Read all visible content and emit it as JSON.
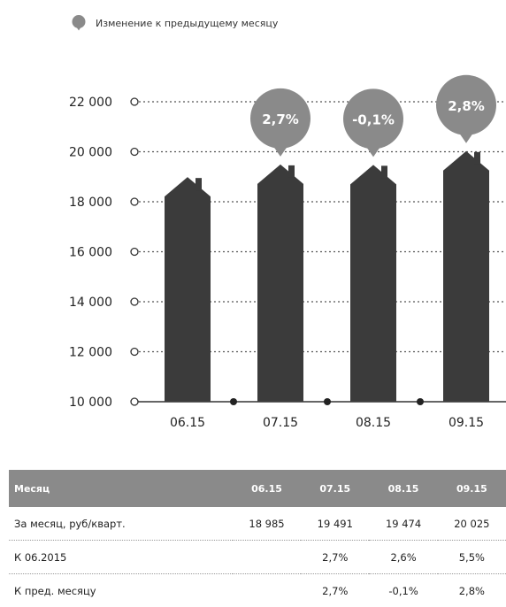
{
  "legend": {
    "label": "Изменение к предыдущему месяцу",
    "color": "#8a8a8a"
  },
  "chart_data": {
    "type": "bar",
    "categories": [
      "06.15",
      "07.15",
      "08.15",
      "09.15"
    ],
    "series": [
      {
        "values": [
          18985,
          19491,
          19474,
          20025
        ]
      }
    ],
    "annotations": [
      null,
      "2,7%",
      "-0,1%",
      "2,8%"
    ],
    "yticks": [
      "10 000",
      "12 000",
      "14 000",
      "16 000",
      "18 000",
      "20 000",
      "22 000"
    ],
    "ylim": [
      10000,
      22000
    ],
    "grid": true,
    "bar_shape": "house",
    "bar_color": "#3b3b3b",
    "bubble_color": "#8a8a8a"
  },
  "table": {
    "headers": [
      "Месяц",
      "06.15",
      "07.15",
      "08.15",
      "09.15"
    ],
    "rows": [
      {
        "label": "За месяц, руб/кварт.",
        "cells": [
          "18 985",
          "19 491",
          "19 474",
          "20 025"
        ]
      },
      {
        "label": "К 06.2015",
        "cells": [
          "",
          "2,7%",
          "2,6%",
          "5,5%"
        ]
      },
      {
        "label": "К пред. месяцу",
        "cells": [
          "",
          "2,7%",
          "-0,1%",
          "2,8%"
        ]
      }
    ]
  }
}
